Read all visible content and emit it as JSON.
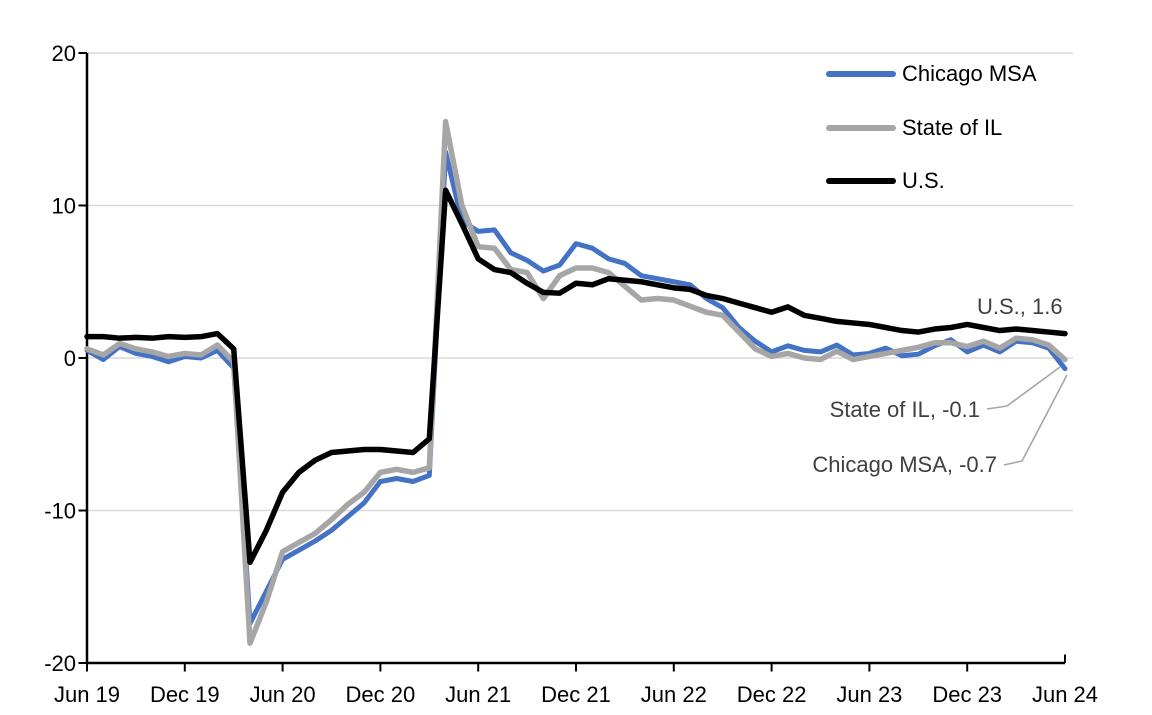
{
  "colors": {
    "background": "#FFFFFF",
    "gridline": "#D9D9D9",
    "axis": "#000000",
    "annotation_text": "#404040",
    "leader_line": "#A6A6A6",
    "chicago_blue": "#4472C4",
    "il_gray": "#A6A6A6",
    "us_black": "#000000"
  },
  "legend": {
    "items": [
      {
        "label": "Chicago MSA",
        "color": "#4472C4"
      },
      {
        "label": "State of IL",
        "color": "#A6A6A6"
      },
      {
        "label": "U.S.",
        "color": "#000000"
      }
    ]
  },
  "annotations": {
    "us": {
      "text": "U.S., 1.6",
      "series": "U.S.",
      "value": 1.6
    },
    "il": {
      "text": "State of IL, -0.1",
      "series": "State of IL",
      "value": -0.1
    },
    "chicago": {
      "text": "Chicago MSA, -0.7",
      "series": "Chicago MSA",
      "value": -0.7
    }
  },
  "chart_data": {
    "type": "line",
    "title": "",
    "xlabel": "",
    "ylabel": "",
    "x_unit": "monthly, Jun 2019 - Jun 2024",
    "x_tick_labels": [
      "Jun 19",
      "Dec 19",
      "Jun 20",
      "Dec 20",
      "Jun 21",
      "Dec 21",
      "Jun 22",
      "Dec 22",
      "Jun 23",
      "Dec 23",
      "Jun 24"
    ],
    "x_tick_indices": [
      0,
      6,
      12,
      18,
      24,
      30,
      36,
      42,
      48,
      54,
      60
    ],
    "y_ticks": [
      20,
      10,
      0,
      -10,
      -20
    ],
    "ylim": [
      -20,
      20
    ],
    "grid": "horizontal",
    "legend_position": "top-right",
    "series": [
      {
        "name": "Chicago MSA",
        "color": "#4472C4",
        "values": [
          0.5,
          -0.1,
          0.75,
          0.3,
          0.1,
          -0.25,
          0.1,
          0.0,
          0.5,
          -0.65,
          -17.4,
          -15.3,
          -13.2,
          -12.6,
          -12.0,
          -11.3,
          -10.4,
          -9.5,
          -8.1,
          -7.9,
          -8.1,
          -7.7,
          13.5,
          9.0,
          8.3,
          8.4,
          6.9,
          6.4,
          5.7,
          6.1,
          7.5,
          7.2,
          6.5,
          6.2,
          5.4,
          5.2,
          5.0,
          4.8,
          3.9,
          3.3,
          2.0,
          1.1,
          0.4,
          0.8,
          0.5,
          0.4,
          0.85,
          0.2,
          0.3,
          0.65,
          0.15,
          0.25,
          0.8,
          1.2,
          0.4,
          0.85,
          0.4,
          1.1,
          1.0,
          0.65,
          -0.7
        ]
      },
      {
        "name": "State of IL",
        "color": "#A6A6A6",
        "values": [
          0.6,
          0.2,
          0.95,
          0.6,
          0.4,
          0.1,
          0.3,
          0.2,
          0.85,
          -0.25,
          -18.7,
          -16.0,
          -12.7,
          -12.1,
          -11.5,
          -10.6,
          -9.6,
          -8.8,
          -7.5,
          -7.3,
          -7.5,
          -7.2,
          15.5,
          10.0,
          7.3,
          7.2,
          5.8,
          5.6,
          3.9,
          5.4,
          5.9,
          5.9,
          5.6,
          4.7,
          3.8,
          3.9,
          3.8,
          3.4,
          3.0,
          2.8,
          1.7,
          0.6,
          0.1,
          0.3,
          0.0,
          -0.1,
          0.45,
          -0.1,
          0.1,
          0.3,
          0.5,
          0.7,
          1.0,
          1.0,
          0.75,
          1.1,
          0.65,
          1.3,
          1.2,
          0.85,
          -0.1
        ]
      },
      {
        "name": "U.S.",
        "color": "#000000",
        "values": [
          1.4,
          1.4,
          1.3,
          1.35,
          1.3,
          1.4,
          1.35,
          1.4,
          1.6,
          0.6,
          -13.4,
          -11.3,
          -8.8,
          -7.5,
          -6.7,
          -6.2,
          -6.1,
          -6.0,
          -6.0,
          -6.1,
          -6.2,
          -5.3,
          11.0,
          8.8,
          6.5,
          5.8,
          5.6,
          4.9,
          4.3,
          4.25,
          4.9,
          4.8,
          5.2,
          5.1,
          5.0,
          4.8,
          4.6,
          4.5,
          4.1,
          3.9,
          3.6,
          3.3,
          3.0,
          3.35,
          2.8,
          2.6,
          2.4,
          2.3,
          2.2,
          2.0,
          1.8,
          1.7,
          1.9,
          2.0,
          2.2,
          2.0,
          1.8,
          1.9,
          1.8,
          1.7,
          1.6
        ]
      }
    ]
  }
}
